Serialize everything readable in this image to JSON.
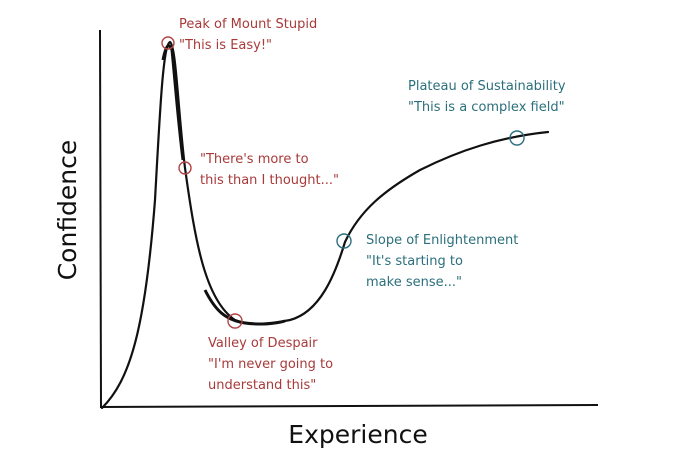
{
  "axes": {
    "x_label": "Experience",
    "y_label": "Confidence"
  },
  "annotations": [
    {
      "lines": [
        "Peak of Mount Stupid",
        "\"This is Easy!\""
      ]
    },
    {
      "lines": [
        "\"There's more to",
        "this than I thought...\""
      ]
    },
    {
      "lines": [
        "Valley of Despair",
        "\"I'm never going to",
        "understand this\""
      ]
    },
    {
      "lines": [
        "Slope of Enlightenment",
        "\"It's starting to",
        "make sense...\""
      ]
    },
    {
      "lines": [
        "Plateau of Sustainability",
        "\"This is a complex field\""
      ]
    }
  ]
}
